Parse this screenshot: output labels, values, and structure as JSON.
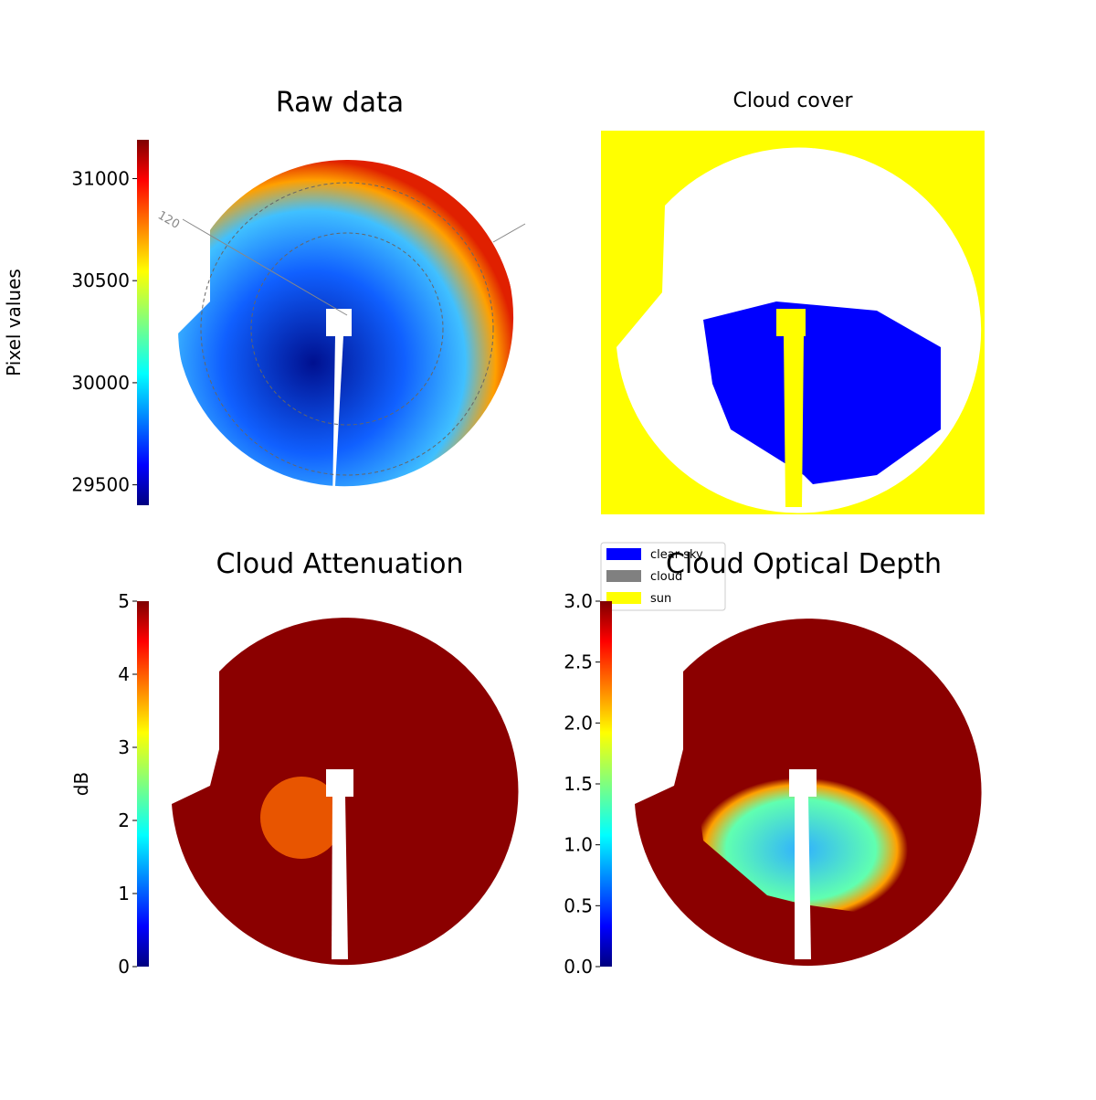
{
  "chart_data": [
    {
      "type": "image",
      "title": "Raw data",
      "colorbar_label": "Pixel values",
      "ylim": [
        29400,
        31190
      ],
      "yticks": [
        29500,
        30000,
        30500,
        31000
      ],
      "annotations": [
        "120"
      ]
    },
    {
      "type": "image",
      "title": "Cloud cover",
      "legend": [
        {
          "name": "clear sky",
          "color": "#0000ff"
        },
        {
          "name": "cloud",
          "color": "#808080"
        },
        {
          "name": "sun",
          "color": "#ffff00"
        }
      ]
    },
    {
      "type": "image",
      "title": "Cloud Attenuation",
      "colorbar_label": "dB",
      "ylim": [
        0,
        5
      ],
      "yticks": [
        0,
        1,
        2,
        3,
        4,
        5
      ]
    },
    {
      "type": "image",
      "title": "Cloud Optical Depth",
      "ylim": [
        0,
        3
      ],
      "yticks": [
        {
          "value": 0,
          "label": "0.0"
        },
        0.5,
        {
          "value": 1,
          "label": "1.0"
        },
        1.5,
        {
          "value": 2,
          "label": "2.0"
        },
        2.5,
        {
          "value": 3,
          "label": "3.0"
        }
      ]
    }
  ]
}
